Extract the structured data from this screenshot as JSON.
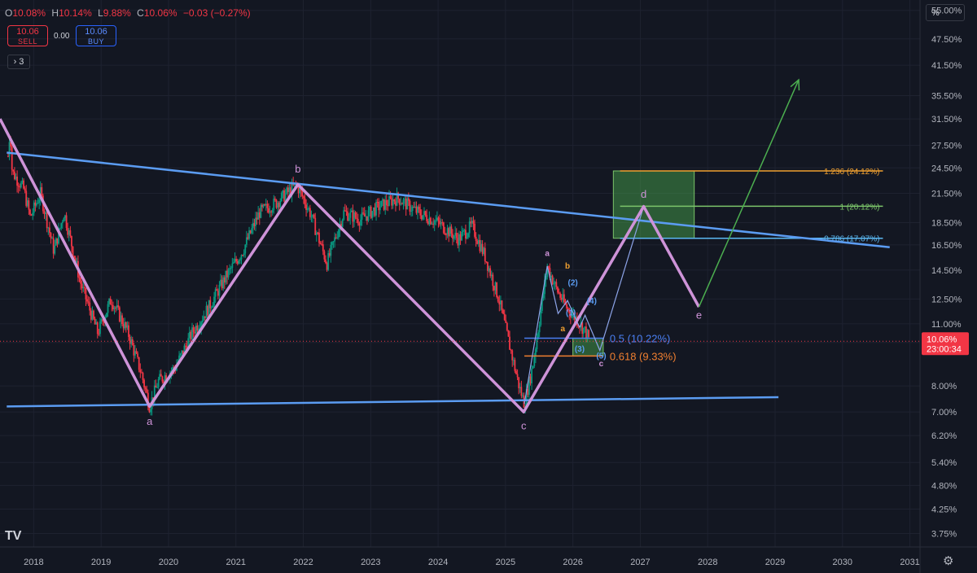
{
  "header": {
    "ohlc": [
      {
        "k": "O",
        "v": "10.08%"
      },
      {
        "k": "H",
        "v": "10.14%"
      },
      {
        "k": "L",
        "v": "9.88%"
      },
      {
        "k": "C",
        "v": "10.06%"
      },
      {
        "k": "",
        "v": "−0.03 (−0.27%)"
      }
    ],
    "sell_price": "10.06",
    "sell_label": "SELL",
    "spread": "0.00",
    "buy_price": "10.06",
    "buy_label": "BUY",
    "layers_count": "3",
    "scale_button": "%",
    "settings_icon": "gear-icon",
    "logo_icon": "tradingview-logo"
  },
  "colors": {
    "background": "#131722",
    "grid": "#1e2230",
    "up": "#089981",
    "down": "#f23645",
    "wave": "#ce93d8",
    "trend": "#5b9cf2",
    "projection": "#4caf50",
    "fib_1236": "#f0a030",
    "fib_1": "#7bc46a",
    "fib_0786": "#5bb8f2",
    "fib_05": "#4a7ff2",
    "fib_0618": "#f07f30"
  },
  "chart_data": {
    "type": "candlestick",
    "scale": "log",
    "ylim": [
      3.5,
      58
    ],
    "xlim": [
      2017.5,
      2031.15
    ],
    "x_ticks": [
      "2018",
      "2019",
      "2020",
      "2021",
      "2022",
      "2023",
      "2024",
      "2025",
      "2026",
      "2027",
      "2028",
      "2029",
      "2030",
      "2031"
    ],
    "y_ticks": [
      "55.00%",
      "47.50%",
      "41.50%",
      "35.50%",
      "31.50%",
      "27.50%",
      "24.50%",
      "21.50%",
      "18.50%",
      "16.50%",
      "14.50%",
      "12.50%",
      "11.00%",
      "10.00%",
      "8.00%",
      "7.00%",
      "6.20%",
      "5.40%",
      "4.80%",
      "4.25%",
      "3.75%"
    ],
    "last_price": {
      "label": "10.06%",
      "countdown": "23:00:34",
      "value": 10.06
    },
    "price_path": [
      [
        2017.62,
        26.0
      ],
      [
        2017.65,
        30.0
      ],
      [
        2017.68,
        24.0
      ],
      [
        2017.85,
        22.0
      ],
      [
        2017.95,
        19.0
      ],
      [
        2018.1,
        21.5
      ],
      [
        2018.3,
        16.0
      ],
      [
        2018.45,
        19.5
      ],
      [
        2018.7,
        13.5
      ],
      [
        2018.95,
        10.5
      ],
      [
        2019.15,
        12.5
      ],
      [
        2019.4,
        10.5
      ],
      [
        2019.6,
        8.5
      ],
      [
        2019.72,
        7.2
      ],
      [
        2019.85,
        8.2
      ],
      [
        2020.1,
        8.8
      ],
      [
        2020.35,
        10.5
      ],
      [
        2020.6,
        12.0
      ],
      [
        2020.85,
        14.0
      ],
      [
        2021.1,
        16.0
      ],
      [
        2021.35,
        19.5
      ],
      [
        2021.6,
        20.5
      ],
      [
        2021.9,
        22.5
      ],
      [
        2022.1,
        19.5
      ],
      [
        2022.35,
        15.0
      ],
      [
        2022.6,
        19.5
      ],
      [
        2022.85,
        18.8
      ],
      [
        2023.1,
        20.0
      ],
      [
        2023.4,
        21.0
      ],
      [
        2023.7,
        19.5
      ],
      [
        2024.0,
        18.5
      ],
      [
        2024.3,
        17.0
      ],
      [
        2024.5,
        18.2
      ],
      [
        2024.7,
        15.5
      ],
      [
        2024.9,
        12.5
      ],
      [
        2025.05,
        10.0
      ],
      [
        2025.2,
        8.0
      ],
      [
        2025.28,
        7.3
      ],
      [
        2025.4,
        8.8
      ],
      [
        2025.55,
        12.5
      ],
      [
        2025.62,
        14.8
      ],
      [
        2025.75,
        13.2
      ],
      [
        2025.9,
        12.0
      ],
      [
        2026.05,
        11.3
      ],
      [
        2026.2,
        10.5
      ],
      [
        2026.25,
        10.06
      ]
    ],
    "trendlines": [
      {
        "name": "upper",
        "from": [
          2017.6,
          26.5
        ],
        "to": [
          2030.7,
          16.3
        ]
      },
      {
        "name": "lower",
        "from": [
          2017.6,
          7.2
        ],
        "to": [
          2029.05,
          7.55
        ]
      }
    ],
    "wave_path": [
      [
        2017.5,
        31.5
      ],
      [
        2019.72,
        7.2
      ],
      [
        2021.92,
        22.5
      ],
      [
        2025.27,
        7.0
      ],
      [
        2027.05,
        20.1
      ],
      [
        2027.87,
        12.0
      ]
    ],
    "wave_labels": [
      {
        "text": "a",
        "x": 2019.72,
        "y": 6.55
      },
      {
        "text": "b",
        "x": 2021.92,
        "y": 23.9
      },
      {
        "text": "c",
        "x": 2025.27,
        "y": 6.4
      },
      {
        "text": "d",
        "x": 2027.05,
        "y": 21.0
      },
      {
        "text": "e",
        "x": 2027.87,
        "y": 11.3
      }
    ],
    "projection": {
      "from": [
        2027.87,
        12.0
      ],
      "to": [
        2029.35,
        38.5
      ]
    },
    "fib_levels": [
      {
        "ratio": "1.236 (24.12%)",
        "value": 24.12,
        "x0": 2026.7,
        "x1": 2030.6,
        "color": "#f0a030"
      },
      {
        "ratio": "1 (20.12%)",
        "value": 20.12,
        "x0": 2026.7,
        "x1": 2030.6,
        "color": "#7bc46a"
      },
      {
        "ratio": "0.786 (17.07%)",
        "value": 17.07,
        "x0": 2026.7,
        "x1": 2030.6,
        "color": "#5bb8f2"
      }
    ],
    "retrace_levels": [
      {
        "ratio": "0.5 (10.22%)",
        "value": 10.22,
        "x0": 2025.28,
        "x1": 2026.45,
        "color": "#4a7ff2"
      },
      {
        "ratio": "0.618 (9.33%)",
        "value": 9.33,
        "x0": 2025.28,
        "x1": 2026.45,
        "color": "#f07f30"
      }
    ],
    "target_zones": [
      {
        "x0": 2026.6,
        "x1": 2027.8,
        "y0": 17.07,
        "y1": 24.12
      },
      {
        "x0": 2026.0,
        "x1": 2026.45,
        "y0": 9.33,
        "y1": 10.22
      }
    ],
    "subwave": {
      "path": [
        [
          2025.28,
          7.3
        ],
        [
          2025.62,
          14.8
        ],
        [
          2025.78,
          11.6
        ],
        [
          2025.92,
          12.4
        ],
        [
          2026.1,
          10.8
        ],
        [
          2026.18,
          11.5
        ],
        [
          2026.4,
          9.6
        ],
        [
          2027.05,
          20.1
        ]
      ],
      "labels": [
        {
          "text": "a",
          "x": 2025.62,
          "y": 15.6,
          "color": "#ce93d8"
        },
        {
          "text": "b",
          "x": 2025.92,
          "y": 14.6,
          "color": "#f0a030"
        },
        {
          "text": "(2)",
          "x": 2026.0,
          "y": 13.4,
          "color": "#5b9cf2"
        },
        {
          "text": "(4)",
          "x": 2026.28,
          "y": 12.2,
          "color": "#5b9cf2"
        },
        {
          "text": "(1)",
          "x": 2025.97,
          "y": 11.5,
          "color": "#5b9cf2"
        },
        {
          "text": "a",
          "x": 2025.85,
          "y": 10.6,
          "color": "#f0a030"
        },
        {
          "text": "(3)",
          "x": 2026.1,
          "y": 9.55,
          "color": "#5b9cf2"
        },
        {
          "text": "(5)",
          "x": 2026.42,
          "y": 9.2,
          "color": "#5b9cf2"
        },
        {
          "text": "c",
          "x": 2026.42,
          "y": 8.85,
          "color": "#ce93d8"
        }
      ]
    }
  }
}
